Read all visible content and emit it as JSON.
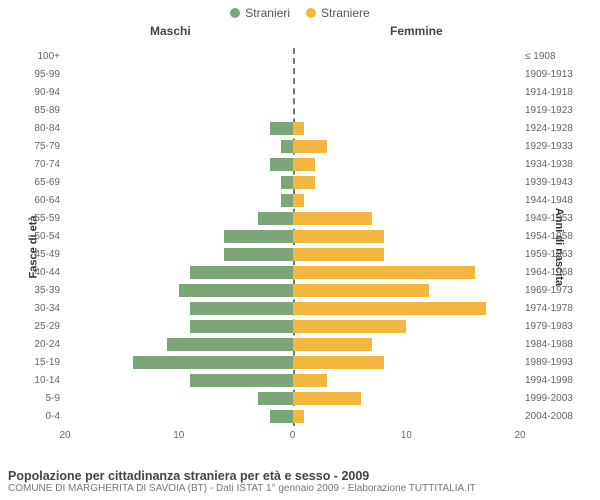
{
  "legend": {
    "items": [
      {
        "label": "Stranieri",
        "color": "#7aa678"
      },
      {
        "label": "Straniere",
        "color": "#f3b63f"
      }
    ]
  },
  "headers": {
    "male": "Maschi",
    "female": "Femmine"
  },
  "axis_labels": {
    "left": "Fasce di età",
    "right": "Anni di nascita"
  },
  "chart": {
    "type": "population-pyramid",
    "xmax": 20,
    "xtick_step": 10,
    "male_color": "#7aa678",
    "female_color": "#f3b63f",
    "background_color": "#ffffff",
    "centerline_color": "#777777",
    "label_fontsize": 10,
    "rows": [
      {
        "age": "100+",
        "birth": "≤ 1908",
        "m": 0,
        "f": 0
      },
      {
        "age": "95-99",
        "birth": "1909-1913",
        "m": 0,
        "f": 0
      },
      {
        "age": "90-94",
        "birth": "1914-1918",
        "m": 0,
        "f": 0
      },
      {
        "age": "85-89",
        "birth": "1919-1923",
        "m": 0,
        "f": 0
      },
      {
        "age": "80-84",
        "birth": "1924-1928",
        "m": 2,
        "f": 1
      },
      {
        "age": "75-79",
        "birth": "1929-1933",
        "m": 1,
        "f": 3
      },
      {
        "age": "70-74",
        "birth": "1934-1938",
        "m": 2,
        "f": 2
      },
      {
        "age": "65-69",
        "birth": "1939-1943",
        "m": 1,
        "f": 2
      },
      {
        "age": "60-64",
        "birth": "1944-1948",
        "m": 1,
        "f": 1
      },
      {
        "age": "55-59",
        "birth": "1949-1953",
        "m": 3,
        "f": 7
      },
      {
        "age": "50-54",
        "birth": "1954-1958",
        "m": 6,
        "f": 8
      },
      {
        "age": "45-49",
        "birth": "1959-1963",
        "m": 6,
        "f": 8
      },
      {
        "age": "40-44",
        "birth": "1964-1968",
        "m": 9,
        "f": 16
      },
      {
        "age": "35-39",
        "birth": "1969-1973",
        "m": 10,
        "f": 12
      },
      {
        "age": "30-34",
        "birth": "1974-1978",
        "m": 9,
        "f": 17
      },
      {
        "age": "25-29",
        "birth": "1979-1983",
        "m": 9,
        "f": 10
      },
      {
        "age": "20-24",
        "birth": "1984-1988",
        "m": 11,
        "f": 7
      },
      {
        "age": "15-19",
        "birth": "1989-1993",
        "m": 14,
        "f": 8
      },
      {
        "age": "10-14",
        "birth": "1994-1998",
        "m": 9,
        "f": 3
      },
      {
        "age": "5-9",
        "birth": "1999-2003",
        "m": 3,
        "f": 6
      },
      {
        "age": "0-4",
        "birth": "2004-2008",
        "m": 2,
        "f": 1
      }
    ],
    "xticks_left": [
      {
        "v": 20,
        "label": "20"
      },
      {
        "v": 10,
        "label": "10"
      }
    ],
    "xticks_right": [
      {
        "v": 0,
        "label": "0"
      },
      {
        "v": 10,
        "label": "10"
      },
      {
        "v": 20,
        "label": "20"
      }
    ]
  },
  "footer": {
    "title": "Popolazione per cittadinanza straniera per età e sesso - 2009",
    "sub": "COMUNE DI MARGHERITA DI SAVOIA (BT) - Dati ISTAT 1° gennaio 2009 - Elaborazione TUTTITALIA.IT"
  }
}
